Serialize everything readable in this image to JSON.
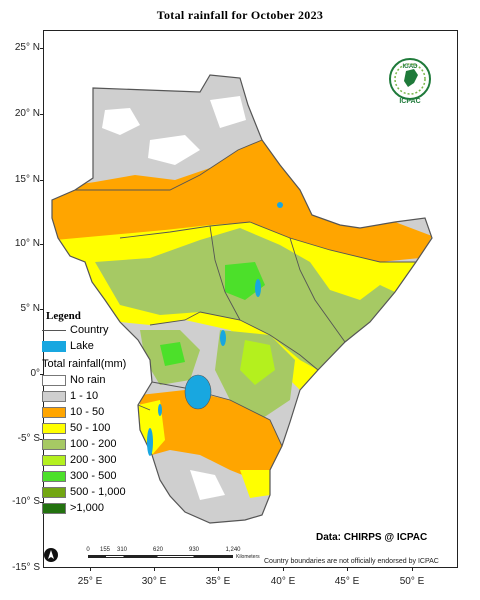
{
  "title": "Total rainfall  for  October  2023",
  "lat_labels": [
    "25° N",
    "20° N",
    "15° N",
    "10° N",
    "5° N",
    "0°",
    "-5° S",
    "-10° S",
    "-15° S"
  ],
  "lon_labels": [
    "25° E",
    "30° E",
    "35° E",
    "40° E",
    "45° E",
    "50° E"
  ],
  "legend": {
    "title": "Legend",
    "country": "Country",
    "lake": "Lake",
    "rain_title": "Total rainfall(mm)",
    "classes": [
      {
        "label": "No rain",
        "color": "#ffffff"
      },
      {
        "label": "1 - 10",
        "color": "#cfcfcf"
      },
      {
        "label": "10 - 50",
        "color": "#ffa500"
      },
      {
        "label": "50 - 100",
        "color": "#ffff00"
      },
      {
        "label": "100 - 200",
        "color": "#a6c964"
      },
      {
        "label": "200 - 300",
        "color": "#b4f01e"
      },
      {
        "label": "300 - 500",
        "color": "#4ce02a"
      },
      {
        "label": "500 - 1,000",
        "color": "#72a612"
      },
      {
        "label": ">1,000",
        "color": "#23720f"
      }
    ],
    "lake_color": "#18a7e0"
  },
  "credit": "Data: CHIRPS @ ICPAC",
  "disclaimer": "Country boundaries are not officially endorsed by ICPAC",
  "scalebar": {
    "ticks": [
      "0",
      "155",
      "310",
      "620",
      "930",
      "1,240"
    ],
    "unit": "Kilometers"
  },
  "logo": {
    "top": "IGAD",
    "bottom": "ICPAC"
  }
}
